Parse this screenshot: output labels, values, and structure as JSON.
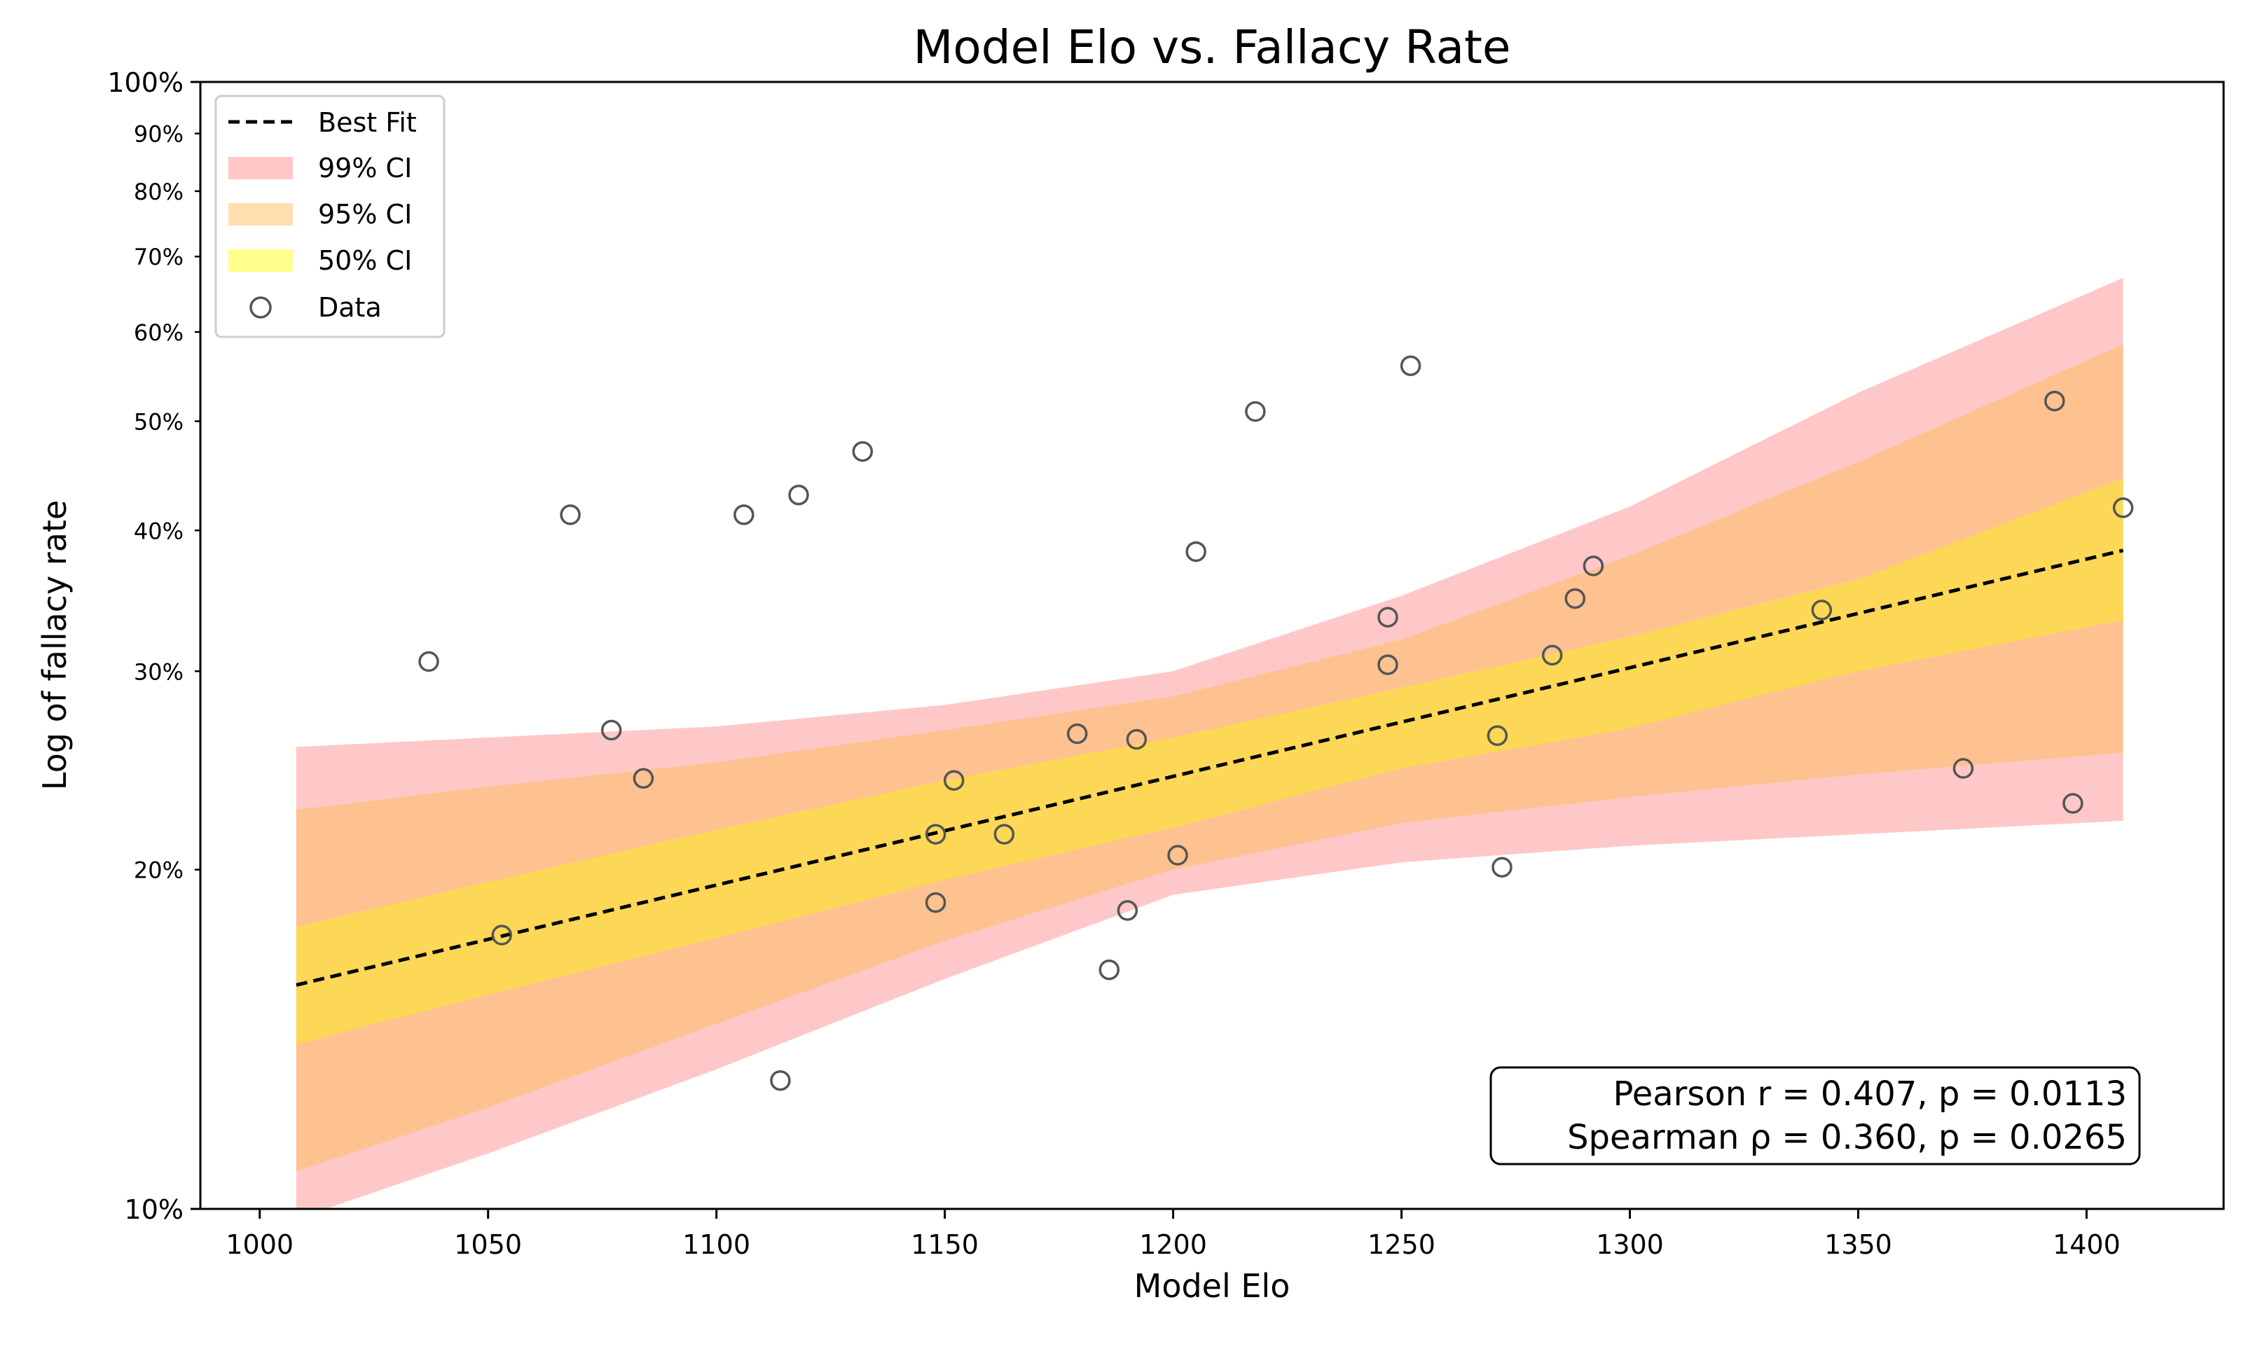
{
  "chart_data": {
    "type": "scatter",
    "title": "Model Elo vs. Fallacy Rate",
    "xlabel": "Model Elo",
    "ylabel": "Log of fallacy rate",
    "yscale": "log",
    "xlim": [
      987,
      1430
    ],
    "ylim": [
      0.1,
      1.0
    ],
    "x_ticks": [
      1000,
      1050,
      1100,
      1150,
      1200,
      1250,
      1300,
      1350,
      1400
    ],
    "y_ticks_major": [
      {
        "value": 0.1,
        "label": "10%"
      },
      {
        "value": 1.0,
        "label": "100%"
      }
    ],
    "y_ticks_minor": [
      {
        "value": 0.2,
        "label": "20%"
      },
      {
        "value": 0.3,
        "label": "30%"
      },
      {
        "value": 0.4,
        "label": "40%"
      },
      {
        "value": 0.5,
        "label": "50%"
      },
      {
        "value": 0.6,
        "label": "60%"
      },
      {
        "value": 0.7,
        "label": "70%"
      },
      {
        "value": 0.8,
        "label": "80%"
      },
      {
        "value": 0.9,
        "label": "90%"
      }
    ],
    "grid": false,
    "legend_position": "top-left",
    "legend": [
      {
        "label": "Best Fit",
        "kind": "dashed-line",
        "color": "#000000"
      },
      {
        "label": "99% CI",
        "kind": "band",
        "color": "#ffc8c8"
      },
      {
        "label": "95% CI",
        "kind": "band",
        "color": "#ffdfb0"
      },
      {
        "label": "50% CI",
        "kind": "band",
        "color": "#ffff8c"
      },
      {
        "label": "Data",
        "kind": "hollow-circle",
        "color": "#555555"
      }
    ],
    "best_fit": {
      "name": "Best Fit",
      "x": [
        1008,
        1408
      ],
      "y": [
        0.158,
        0.384
      ]
    },
    "bands": [
      {
        "name": "99% CI",
        "color": "#ffc8c8",
        "x": [
          1008,
          1050,
          1100,
          1150,
          1200,
          1250,
          1300,
          1350,
          1408
        ],
        "upper": [
          0.257,
          0.262,
          0.268,
          0.28,
          0.3,
          0.35,
          0.42,
          0.53,
          0.67
        ],
        "lower": [
          0.098,
          0.112,
          0.133,
          0.16,
          0.19,
          0.203,
          0.21,
          0.215,
          0.221
        ]
      },
      {
        "name": "95% CI",
        "color": "#fec291",
        "x": [
          1008,
          1050,
          1100,
          1150,
          1200,
          1250,
          1300,
          1350,
          1408
        ],
        "upper": [
          0.226,
          0.237,
          0.249,
          0.266,
          0.285,
          0.32,
          0.38,
          0.46,
          0.585
        ],
        "lower": [
          0.108,
          0.123,
          0.146,
          0.173,
          0.2,
          0.22,
          0.232,
          0.243,
          0.254
        ]
      },
      {
        "name": "50% CI",
        "color": "#fdd856",
        "x": [
          1008,
          1050,
          1100,
          1150,
          1200,
          1250,
          1300,
          1350,
          1408
        ],
        "upper": [
          0.178,
          0.195,
          0.217,
          0.24,
          0.262,
          0.29,
          0.322,
          0.362,
          0.445
        ],
        "lower": [
          0.14,
          0.155,
          0.174,
          0.196,
          0.218,
          0.246,
          0.267,
          0.3,
          0.333
        ]
      }
    ],
    "series": [
      {
        "name": "Data",
        "x": [
          1037,
          1053,
          1068,
          1077,
          1084,
          1106,
          1114,
          1118,
          1132,
          1148,
          1148,
          1152,
          1163,
          1179,
          1186,
          1190,
          1192,
          1201,
          1205,
          1218,
          1247,
          1247,
          1252,
          1271,
          1272,
          1283,
          1288,
          1292,
          1342,
          1373,
          1393,
          1397,
          1408
        ],
        "y": [
          0.306,
          0.175,
          0.413,
          0.266,
          0.241,
          0.413,
          0.13,
          0.43,
          0.47,
          0.215,
          0.187,
          0.24,
          0.215,
          0.264,
          0.163,
          0.184,
          0.261,
          0.206,
          0.383,
          0.51,
          0.335,
          0.304,
          0.56,
          0.263,
          0.201,
          0.31,
          0.348,
          0.372,
          0.34,
          0.246,
          0.521,
          0.229,
          0.419
        ]
      }
    ],
    "stats": {
      "pearson": "Pearson r = 0.407, p = 0.0113",
      "spearman": "Spearman ρ = 0.360, p = 0.0265"
    }
  }
}
